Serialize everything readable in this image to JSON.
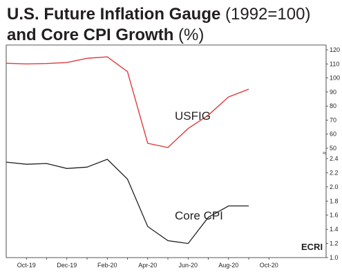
{
  "title": {
    "line1_bold": "U.S. Future Inflation Gauge",
    "line1_light": " (1992=100)",
    "line2_bold": "and Core CPI Growth",
    "line2_light": " (%)"
  },
  "logo": "ECRI",
  "chart_data": [
    {
      "type": "line",
      "name": "USFIG",
      "x": [
        "2019-09",
        "2019-10",
        "2019-11",
        "2019-12",
        "2020-01",
        "2020-02",
        "2020-03",
        "2020-04",
        "2020-05",
        "2020-06",
        "2020-07",
        "2020-08",
        "2020-09"
      ],
      "values": [
        110.5,
        110,
        110.3,
        111,
        114,
        115,
        104.5,
        53.5,
        50.5,
        64,
        73.5,
        86.5,
        92
      ],
      "ylim": [
        50,
        120
      ],
      "yticks": [
        "50",
        "60",
        "70",
        "80",
        "90",
        "100",
        "110",
        "120"
      ],
      "color": "#e03a3e"
    },
    {
      "type": "line",
      "name": "Core CPI",
      "x": [
        "2019-09",
        "2019-10",
        "2019-11",
        "2019-12",
        "2020-01",
        "2020-02",
        "2020-03",
        "2020-04",
        "2020-05",
        "2020-06",
        "2020-07",
        "2020-08",
        "2020-09"
      ],
      "values": [
        2.35,
        2.32,
        2.33,
        2.26,
        2.28,
        2.39,
        2.11,
        1.44,
        1.24,
        1.2,
        1.57,
        1.73,
        1.73
      ],
      "ylim": [
        1.0,
        2.4
      ],
      "yticks": [
        "1.0",
        "1.2",
        "1.4",
        "1.6",
        "1.8",
        "2.0",
        "2.2",
        "2.4"
      ],
      "color": "#231f20"
    }
  ],
  "x_tick_labels": [
    "Oct-19",
    "Dec-19",
    "Feb-20",
    "Apr-20",
    "Jun-20",
    "Aug-20",
    "Oct-20"
  ],
  "x_tick_months": [
    "2019-10",
    "2019-12",
    "2020-02",
    "2020-04",
    "2020-06",
    "2020-08",
    "2020-10"
  ],
  "axis_break_symbol": "≈"
}
